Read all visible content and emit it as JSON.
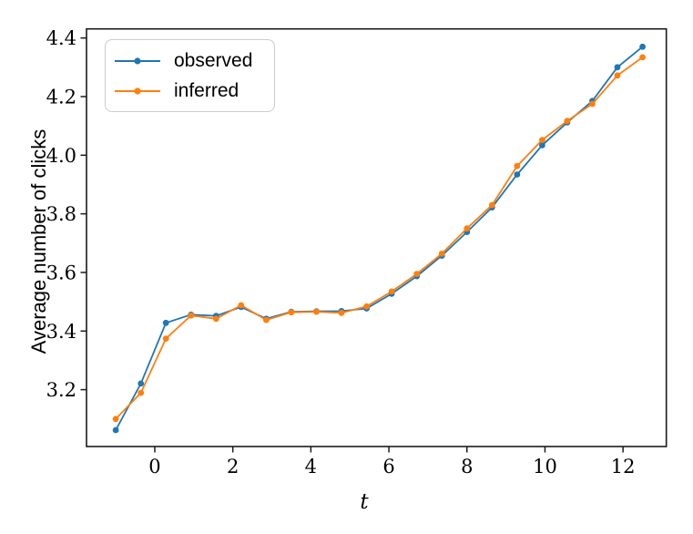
{
  "chart_data": {
    "type": "line",
    "title": "",
    "xlabel": "t",
    "ylabel": "Average number of clicks",
    "legend_position": "upper left",
    "grid": false,
    "xlim": [
      -1.75,
      13.11
    ],
    "ylim": [
      3.006,
      4.431
    ],
    "xticks": [
      0,
      2,
      4,
      6,
      8,
      10,
      12
    ],
    "yticks": [
      3.2,
      3.4,
      3.6,
      3.8,
      4.0,
      4.2,
      4.4
    ],
    "x": [
      -1.0,
      -0.357,
      0.286,
      0.929,
      1.571,
      2.214,
      2.857,
      3.5,
      4.143,
      4.786,
      5.429,
      6.071,
      6.714,
      7.357,
      8.0,
      8.643,
      9.286,
      9.929,
      10.571,
      11.214,
      11.857,
      12.5
    ],
    "series": [
      {
        "name": "observed",
        "color": "#1f77b4",
        "marker": "circle",
        "values": [
          3.062,
          3.221,
          3.428,
          3.456,
          3.452,
          3.482,
          3.442,
          3.466,
          3.467,
          3.468,
          3.477,
          3.527,
          3.587,
          3.657,
          3.738,
          3.822,
          3.934,
          4.034,
          4.112,
          4.185,
          4.3,
          4.37
        ]
      },
      {
        "name": "inferred",
        "color": "#ff7f0e",
        "marker": "circle",
        "values": [
          3.1,
          3.189,
          3.374,
          3.453,
          3.442,
          3.488,
          3.438,
          3.464,
          3.466,
          3.462,
          3.484,
          3.535,
          3.595,
          3.664,
          3.75,
          3.83,
          3.963,
          4.052,
          4.117,
          4.175,
          4.272,
          4.334
        ]
      }
    ]
  }
}
